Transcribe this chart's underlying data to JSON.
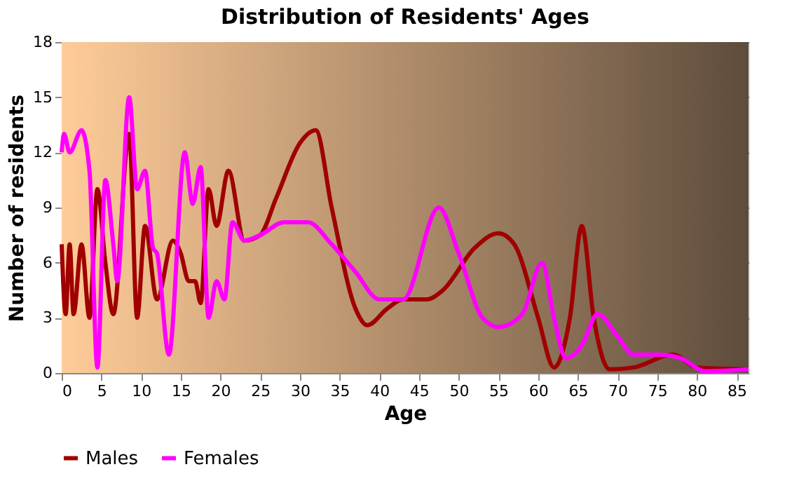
{
  "chart_data": {
    "type": "line",
    "title": "Distribution of Residents' Ages",
    "xlabel": "Age",
    "ylabel": "Number of residents",
    "xlim": [
      0,
      86.5
    ],
    "xticks": [
      0,
      5,
      10,
      15,
      20,
      25,
      30,
      35,
      40,
      45,
      50,
      55,
      60,
      65,
      70,
      75,
      80,
      85
    ],
    "ylim": [
      0,
      18
    ],
    "yticks": [
      0,
      3,
      6,
      9,
      12,
      15,
      18
    ],
    "grid": true,
    "legend": "bottom",
    "line_style": "solid",
    "marker": "none",
    "series": [
      {
        "name": "Males",
        "color": "#a00000",
        "x": [
          0,
          0.5,
          1,
          1.5,
          2.5,
          3.5,
          4.5,
          5.5,
          6.5,
          8.5,
          9.5,
          10.5,
          12,
          14,
          15,
          16,
          16.8,
          17.5,
          18.5,
          19.5,
          21,
          23,
          25,
          27,
          30,
          32,
          34,
          37,
          38.5,
          41,
          43,
          46,
          48,
          52,
          55,
          57,
          60,
          62,
          64,
          65.5,
          67,
          69,
          72,
          77,
          80,
          86.5
        ],
        "values": [
          7,
          3.2,
          7,
          3.2,
          7,
          3,
          10,
          6,
          3.2,
          13,
          3,
          8,
          4,
          7.2,
          6.5,
          5,
          5,
          3.8,
          10,
          8,
          11,
          7.2,
          7.5,
          9.5,
          12.5,
          13.2,
          9,
          3.5,
          2.6,
          3.5,
          4,
          4,
          4.5,
          6.8,
          7.6,
          7,
          3,
          0.3,
          3,
          8,
          3,
          0.2,
          0.3,
          1,
          0.3,
          0.2
        ]
      },
      {
        "name": "Females",
        "color": "#ff00ff",
        "x": [
          0,
          0.3,
          1,
          2.5,
          3.5,
          4.5,
          5.5,
          6.5,
          7,
          8.5,
          9.5,
          10.5,
          11.5,
          12,
          13.5,
          15.5,
          16.5,
          17.5,
          18.5,
          19.5,
          20.5,
          21.5,
          23,
          25,
          28,
          31,
          34,
          37,
          40,
          43,
          47.5,
          50,
          53,
          55,
          58,
          60.5,
          62,
          63.5,
          65.5,
          67.5,
          70,
          72,
          75,
          78,
          81,
          86.5
        ],
        "values": [
          12,
          13,
          12,
          13.2,
          11,
          0.3,
          10.5,
          7,
          5,
          15,
          10,
          11,
          6.8,
          6.5,
          1,
          12,
          9.2,
          11.2,
          3,
          5,
          4,
          8.2,
          7.2,
          7.5,
          8.2,
          8.2,
          7,
          5.5,
          4,
          4,
          9,
          6.5,
          3,
          2.5,
          3.2,
          6,
          3,
          0.8,
          1.5,
          3.2,
          2,
          1,
          1,
          0.8,
          0.1,
          0.2
        ]
      }
    ]
  }
}
